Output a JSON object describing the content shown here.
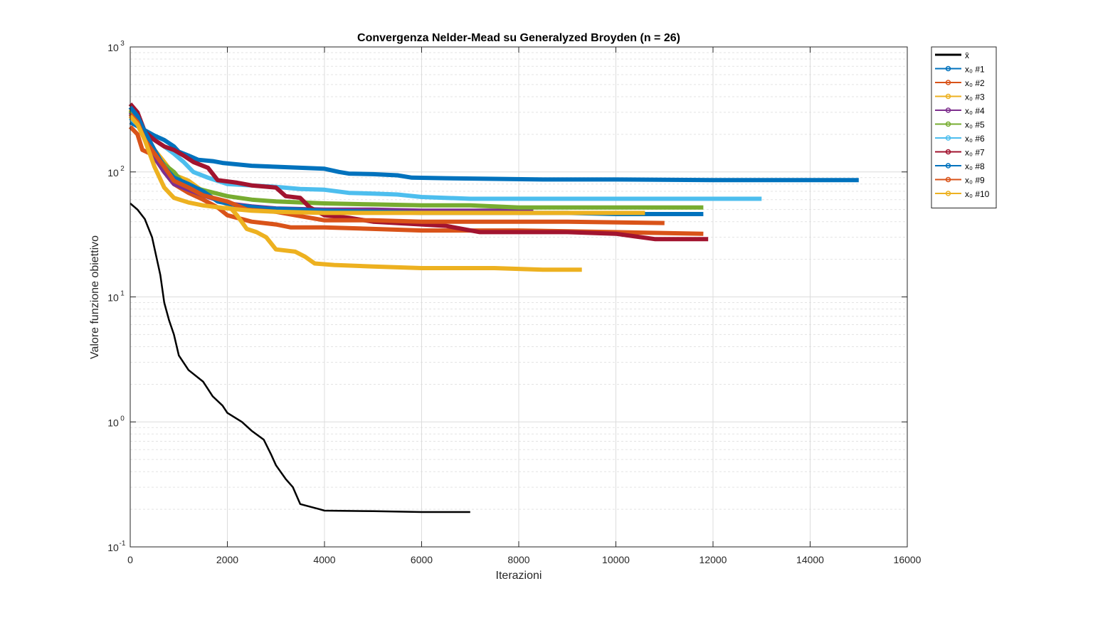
{
  "chart_data": {
    "type": "line",
    "title": "Convergenza Nelder-Mead su Generalyzed Broyden (n = 26)",
    "xlabel": "Iterazioni",
    "ylabel": "Valore funzione obiettivo",
    "xlim": [
      0,
      16000
    ],
    "ylim": [
      0.1,
      1000
    ],
    "yscale": "log",
    "grid": true,
    "legend_position": "outside-top-right",
    "x_ticks": [
      "0",
      "2000",
      "4000",
      "6000",
      "8000",
      "10000",
      "12000",
      "14000",
      "16000"
    ],
    "y_ticks": [
      {
        "base": "10",
        "exp": "-1",
        "value": 0.1
      },
      {
        "base": "10",
        "exp": "0",
        "value": 1
      },
      {
        "base": "10",
        "exp": "1",
        "value": 10
      },
      {
        "base": "10",
        "exp": "2",
        "value": 100
      },
      {
        "base": "10",
        "exp": "3",
        "value": 1000
      }
    ],
    "series": [
      {
        "name": "x̄",
        "color": "#000000",
        "width": 2.5,
        "marker": false,
        "points": [
          [
            0,
            56
          ],
          [
            150,
            50
          ],
          [
            300,
            42
          ],
          [
            450,
            30
          ],
          [
            550,
            20
          ],
          [
            620,
            15
          ],
          [
            700,
            9
          ],
          [
            800,
            6.5
          ],
          [
            900,
            5
          ],
          [
            1000,
            3.4
          ],
          [
            1200,
            2.6
          ],
          [
            1500,
            2.1
          ],
          [
            1700,
            1.6
          ],
          [
            1900,
            1.35
          ],
          [
            2000,
            1.18
          ],
          [
            2300,
            1.0
          ],
          [
            2500,
            0.85
          ],
          [
            2750,
            0.72
          ],
          [
            2900,
            0.55
          ],
          [
            3000,
            0.45
          ],
          [
            3200,
            0.35
          ],
          [
            3350,
            0.3
          ],
          [
            3500,
            0.22
          ],
          [
            3700,
            0.21
          ],
          [
            3900,
            0.2
          ],
          [
            4000,
            0.195
          ],
          [
            5000,
            0.193
          ],
          [
            6000,
            0.19
          ],
          [
            7000,
            0.19
          ]
        ]
      },
      {
        "name": "x₀ #1",
        "color": "#0072BD",
        "width": 6,
        "marker": true,
        "points": [
          [
            0,
            250
          ],
          [
            300,
            215
          ],
          [
            500,
            195
          ],
          [
            700,
            180
          ],
          [
            900,
            160
          ],
          [
            1000,
            145
          ],
          [
            1200,
            135
          ],
          [
            1400,
            125
          ],
          [
            1700,
            122
          ],
          [
            1900,
            118
          ],
          [
            2200,
            115
          ],
          [
            2500,
            112
          ],
          [
            3000,
            110
          ],
          [
            3500,
            108
          ],
          [
            4000,
            106
          ],
          [
            4300,
            100
          ],
          [
            4500,
            97
          ],
          [
            5000,
            96
          ],
          [
            5500,
            94
          ],
          [
            5800,
            90
          ],
          [
            6500,
            89
          ],
          [
            7500,
            88
          ],
          [
            8500,
            87
          ],
          [
            10000,
            87
          ],
          [
            12000,
            86
          ],
          [
            15000,
            86
          ]
        ]
      },
      {
        "name": "x₀ #2",
        "color": "#D95319",
        "width": 6,
        "marker": true,
        "points": [
          [
            0,
            230
          ],
          [
            150,
            200
          ],
          [
            250,
            150
          ],
          [
            500,
            135
          ],
          [
            700,
            100
          ],
          [
            900,
            80
          ],
          [
            1200,
            68
          ],
          [
            1500,
            60
          ],
          [
            1800,
            52
          ],
          [
            2000,
            45
          ],
          [
            2500,
            40
          ],
          [
            3000,
            38
          ],
          [
            3300,
            36
          ],
          [
            4000,
            36
          ],
          [
            5000,
            35
          ],
          [
            6000,
            34
          ],
          [
            8000,
            34
          ],
          [
            10000,
            33
          ],
          [
            11800,
            32
          ]
        ]
      },
      {
        "name": "x₀ #3",
        "color": "#EDB120",
        "width": 6,
        "marker": true,
        "points": [
          [
            0,
            320
          ],
          [
            150,
            280
          ],
          [
            300,
            200
          ],
          [
            500,
            150
          ],
          [
            700,
            120
          ],
          [
            900,
            95
          ],
          [
            1200,
            85
          ],
          [
            1500,
            70
          ],
          [
            1700,
            62
          ],
          [
            2000,
            55
          ],
          [
            2200,
            45
          ],
          [
            2400,
            35
          ],
          [
            2600,
            33
          ],
          [
            2800,
            30
          ],
          [
            3000,
            24
          ],
          [
            3400,
            23
          ],
          [
            3600,
            21
          ],
          [
            3800,
            18.5
          ],
          [
            4200,
            18
          ],
          [
            5000,
            17.5
          ],
          [
            6000,
            17
          ],
          [
            7500,
            17
          ],
          [
            8500,
            16.5
          ],
          [
            9300,
            16.5
          ]
        ]
      },
      {
        "name": "x₀ #4",
        "color": "#7E2F8E",
        "width": 6,
        "marker": true,
        "points": [
          [
            0,
            300
          ],
          [
            150,
            260
          ],
          [
            300,
            190
          ],
          [
            500,
            130
          ],
          [
            700,
            100
          ],
          [
            900,
            80
          ],
          [
            1200,
            72
          ],
          [
            1500,
            65
          ],
          [
            2000,
            56
          ],
          [
            2500,
            53
          ],
          [
            3000,
            51
          ],
          [
            4000,
            50
          ],
          [
            5000,
            50
          ],
          [
            6000,
            49
          ],
          [
            7000,
            49
          ],
          [
            8300,
            49
          ]
        ]
      },
      {
        "name": "x₀ #5",
        "color": "#77AC30",
        "width": 6,
        "marker": true,
        "points": [
          [
            0,
            310
          ],
          [
            150,
            260
          ],
          [
            300,
            200
          ],
          [
            500,
            140
          ],
          [
            700,
            115
          ],
          [
            900,
            100
          ],
          [
            1100,
            80
          ],
          [
            1300,
            75
          ],
          [
            1600,
            70
          ],
          [
            2000,
            64
          ],
          [
            2500,
            60
          ],
          [
            3000,
            58
          ],
          [
            4000,
            56
          ],
          [
            5000,
            55
          ],
          [
            6000,
            54
          ],
          [
            7000,
            54
          ],
          [
            8000,
            52
          ],
          [
            9000,
            52
          ],
          [
            10000,
            52
          ],
          [
            11800,
            52
          ]
        ]
      },
      {
        "name": "x₀ #6",
        "color": "#4DBEEE",
        "width": 6,
        "marker": true,
        "points": [
          [
            0,
            270
          ],
          [
            150,
            240
          ],
          [
            300,
            200
          ],
          [
            500,
            180
          ],
          [
            700,
            160
          ],
          [
            900,
            140
          ],
          [
            1100,
            120
          ],
          [
            1300,
            100
          ],
          [
            1600,
            90
          ],
          [
            2000,
            80
          ],
          [
            2500,
            78
          ],
          [
            3000,
            76
          ],
          [
            3500,
            73
          ],
          [
            4000,
            72
          ],
          [
            4500,
            68
          ],
          [
            5000,
            67
          ],
          [
            5500,
            66
          ],
          [
            6000,
            63
          ],
          [
            7000,
            61
          ],
          [
            8000,
            61
          ],
          [
            9000,
            61
          ],
          [
            10000,
            61
          ],
          [
            13000,
            61
          ]
        ]
      },
      {
        "name": "x₀ #7",
        "color": "#A2142F",
        "width": 6,
        "marker": true,
        "points": [
          [
            0,
            350
          ],
          [
            150,
            300
          ],
          [
            300,
            210
          ],
          [
            500,
            180
          ],
          [
            700,
            160
          ],
          [
            900,
            150
          ],
          [
            1100,
            135
          ],
          [
            1300,
            120
          ],
          [
            1600,
            108
          ],
          [
            1800,
            86
          ],
          [
            2200,
            82
          ],
          [
            2500,
            78
          ],
          [
            3000,
            75
          ],
          [
            3200,
            64
          ],
          [
            3500,
            62
          ],
          [
            3700,
            52
          ],
          [
            4000,
            45
          ],
          [
            4500,
            43
          ],
          [
            5000,
            40
          ],
          [
            6000,
            38
          ],
          [
            6500,
            37
          ],
          [
            7200,
            33
          ],
          [
            8000,
            33
          ],
          [
            9000,
            33
          ],
          [
            10000,
            32
          ],
          [
            10800,
            29
          ],
          [
            11900,
            29
          ]
        ]
      },
      {
        "name": "x₀ #8",
        "color": "#0072BD",
        "width": 6,
        "marker": true,
        "points": [
          [
            0,
            330
          ],
          [
            150,
            280
          ],
          [
            300,
            210
          ],
          [
            500,
            150
          ],
          [
            700,
            110
          ],
          [
            900,
            90
          ],
          [
            1200,
            80
          ],
          [
            1500,
            70
          ],
          [
            1800,
            58
          ],
          [
            2200,
            54
          ],
          [
            2800,
            51
          ],
          [
            3500,
            50
          ],
          [
            4000,
            49
          ],
          [
            5000,
            48
          ],
          [
            6000,
            47
          ],
          [
            7000,
            47
          ],
          [
            8000,
            47
          ],
          [
            9000,
            47
          ],
          [
            10000,
            46
          ],
          [
            11800,
            46
          ]
        ]
      },
      {
        "name": "x₀ #9",
        "color": "#D95319",
        "width": 6,
        "marker": true,
        "points": [
          [
            0,
            290
          ],
          [
            150,
            250
          ],
          [
            300,
            180
          ],
          [
            500,
            140
          ],
          [
            700,
            110
          ],
          [
            900,
            85
          ],
          [
            1200,
            75
          ],
          [
            1500,
            65
          ],
          [
            2000,
            58
          ],
          [
            2400,
            50
          ],
          [
            3000,
            48
          ],
          [
            3400,
            45
          ],
          [
            4000,
            41
          ],
          [
            5000,
            41
          ],
          [
            6000,
            40
          ],
          [
            7000,
            40
          ],
          [
            8000,
            40
          ],
          [
            9000,
            40
          ],
          [
            11000,
            39
          ]
        ]
      },
      {
        "name": "x₀ #10",
        "color": "#EDB120",
        "width": 6,
        "marker": true,
        "points": [
          [
            0,
            280
          ],
          [
            150,
            240
          ],
          [
            300,
            180
          ],
          [
            500,
            110
          ],
          [
            700,
            75
          ],
          [
            900,
            62
          ],
          [
            1200,
            57
          ],
          [
            1500,
            54
          ],
          [
            2000,
            51
          ],
          [
            2500,
            49
          ],
          [
            3000,
            48
          ],
          [
            4000,
            47
          ],
          [
            5000,
            47
          ],
          [
            6000,
            47
          ],
          [
            7000,
            47
          ],
          [
            8000,
            47
          ],
          [
            9000,
            47
          ],
          [
            10600,
            47
          ]
        ]
      }
    ]
  }
}
